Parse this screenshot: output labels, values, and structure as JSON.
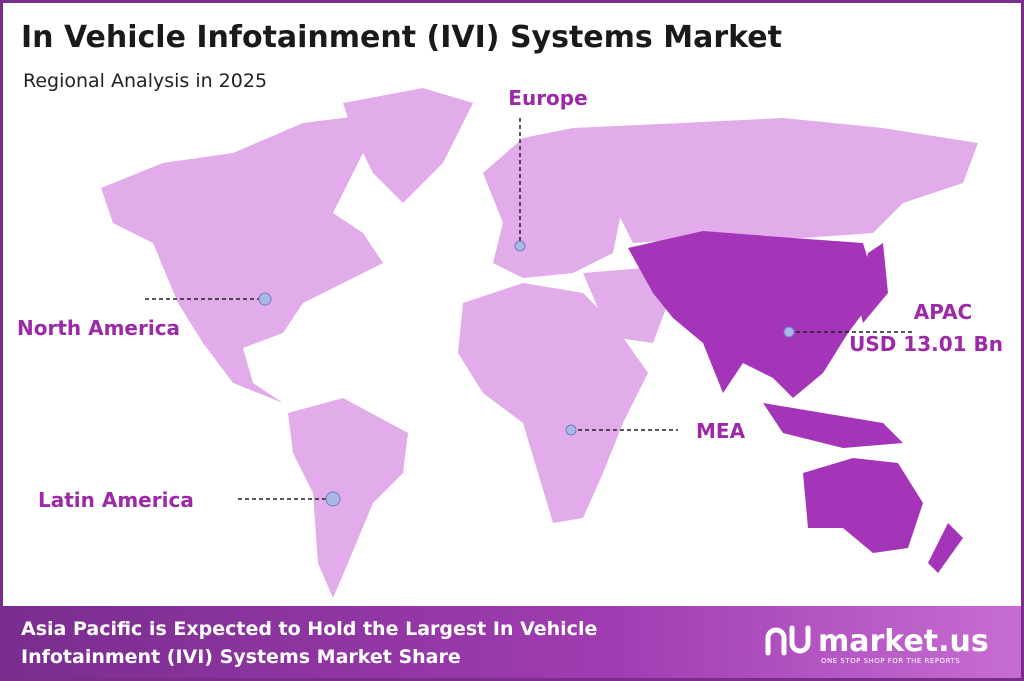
{
  "header": {
    "title": "In Vehicle Infotainment (IVI) Systems Market",
    "subtitle": "Regional Analysis in 2025"
  },
  "regions": [
    "Europe",
    "North America",
    "APAC",
    "MEA",
    "Latin America"
  ],
  "apac_value": "USD 13.01 Bn",
  "footer": {
    "lines": [
      "Asia Pacific is Expected to Hold the Largest In Vehicle",
      "Infotainment (IVI) Systems Market Share"
    ],
    "logo": "market.us",
    "tagline": "ONE STOP SHOP FOR THE REPORTS"
  }
}
